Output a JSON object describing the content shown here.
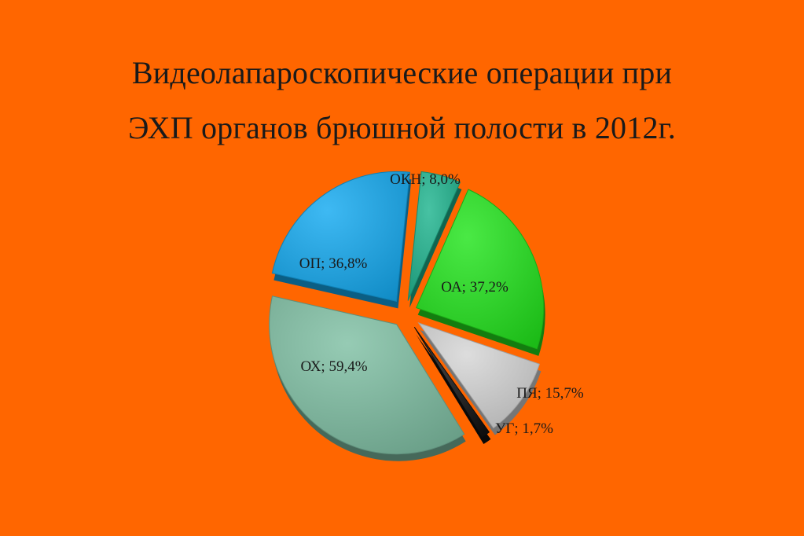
{
  "title": {
    "line1": "Видеолапароскопические операции при",
    "line2": "ЭХП органов брюшной полости в 2012г."
  },
  "chart_data": {
    "type": "pie",
    "exploded": true,
    "style": "3d",
    "slices": [
      {
        "name": "ОКН",
        "label": "ОКН; 8,0%",
        "value": 8.0,
        "color": "#1fb58f"
      },
      {
        "name": "ОА",
        "label": "ОА; 37,2%",
        "value": 37.2,
        "color": "#22e41c"
      },
      {
        "name": "ПЯ",
        "label": "ПЯ; 15,7%",
        "value": 15.7,
        "color": "#d6d6d6"
      },
      {
        "name": "УГ",
        "label": "УГ; 1,7%",
        "value": 1.7,
        "color": "#111111"
      },
      {
        "name": "ОХ",
        "label": "ОХ; 59,4%",
        "value": 59.4,
        "color": "#7fbfa4"
      },
      {
        "name": "ОП",
        "label": "ОП; 36,8%",
        "value": 36.8,
        "color": "#14aaf0"
      }
    ]
  }
}
